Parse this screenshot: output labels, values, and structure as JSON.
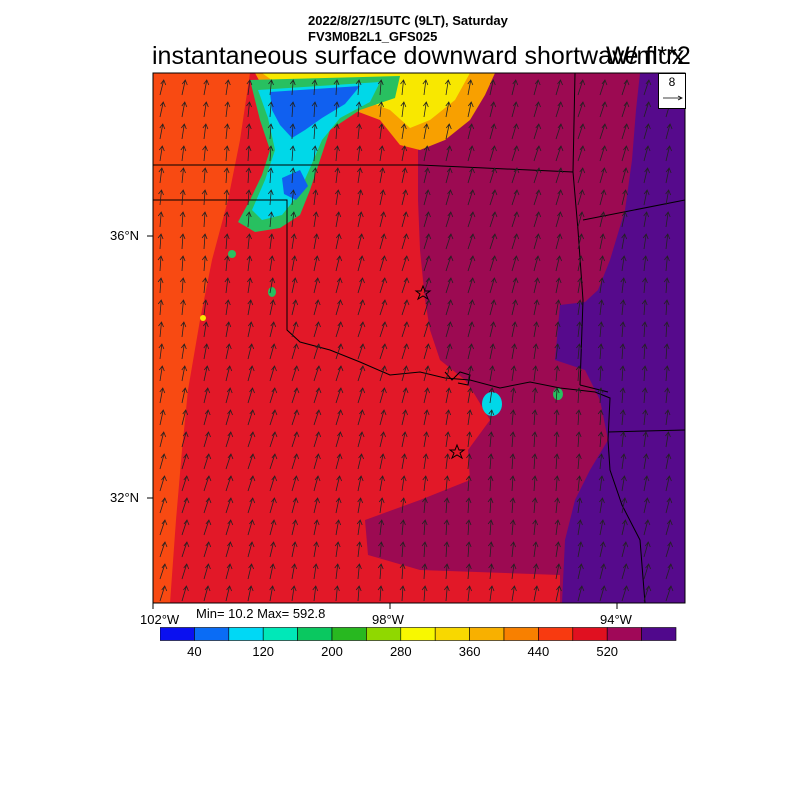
{
  "header": {
    "datetime": "2022/8/27/15UTC (9LT), Saturday",
    "model": "FV3M0B2L1_GFS025",
    "title": "instantaneous surface downward shortwave flux",
    "units": "W/m**2"
  },
  "vector_reference": {
    "magnitude": "8"
  },
  "axes": {
    "lat_labels": [
      "36°N",
      "32°N"
    ],
    "lon_labels": [
      "102°W",
      "98°W",
      "94°W"
    ]
  },
  "stats": {
    "text": "Min= 10.2 Max= 592.8",
    "min": 10.2,
    "max": 592.8
  },
  "colorbar": {
    "colors": [
      "#0a10f0",
      "#0a6cf5",
      "#00d8f5",
      "#00e8b8",
      "#0ac860",
      "#28b820",
      "#90d800",
      "#f8f800",
      "#f8d800",
      "#f8b000",
      "#f88000",
      "#f83a10",
      "#e01020",
      "#a00858",
      "#50088c"
    ],
    "labels": [
      "40",
      "120",
      "200",
      "280",
      "360",
      "440",
      "520"
    ]
  },
  "field_colors": {
    "west": "#f84a12",
    "central": "#e21828",
    "east": "#9c0a52",
    "far_east": "#560a8c",
    "cloud_green": "#28c060",
    "cloud_cyan": "#00d8e8",
    "cloud_blue": "#1060f0",
    "cloud_yellow": "#f8e800",
    "cloud_orange": "#f8a000"
  }
}
